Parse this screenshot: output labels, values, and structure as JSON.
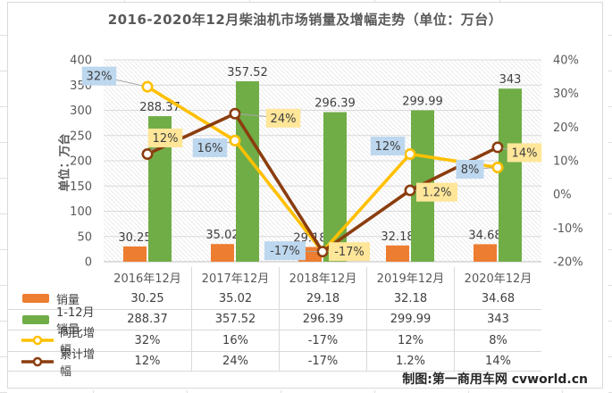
{
  "title": "2016-2020年12月柴油机市场销量及增幅走势（单位：万台）",
  "y_axis_title": "单位：万台",
  "footer_credit": "制图:第一商用车网 cvworld.cn",
  "colors": {
    "orange": "#ED7D31",
    "green": "#70AD47",
    "yellow": "#FFC000",
    "brown": "#8B3D0E",
    "label_blue": "#BDD7EE",
    "label_yellow": "#FFE699",
    "gridline": "#D9D9D9",
    "axis_line": "#BFBFBF",
    "hatch_line": "#EBEBEB",
    "connector": "#A6A6A6",
    "text_gray": "#595959",
    "text_dark": "#404040"
  },
  "chart_data": {
    "type": "combo bar+line",
    "title": "2016-2020年12月柴油机市场销量及增幅走势（单位：万台）",
    "categories": [
      "2016年12月",
      "2017年12月",
      "2018年12月",
      "2019年12月",
      "2020年12月"
    ],
    "left_axis": {
      "title": "单位：万台",
      "min": 0,
      "max": 400,
      "step": 50,
      "tick_labels": [
        "0",
        "50",
        "100",
        "150",
        "200",
        "250",
        "300",
        "350",
        "400"
      ]
    },
    "right_axis": {
      "min": -20,
      "max": 40,
      "step": 10,
      "tick_labels": [
        "-20%",
        "-10%",
        "0%",
        "10%",
        "20%",
        "30%",
        "40%"
      ]
    },
    "grid": "horizontal major gridlines, hatched plot background",
    "legend_position": "data-table below plot",
    "series": [
      {
        "name": "销量",
        "type": "bar",
        "axis": "left",
        "color": "#ED7D31",
        "values": [
          30.25,
          35.02,
          29.18,
          32.18,
          34.68
        ],
        "labels": [
          "30.25",
          "35.02",
          "29.18",
          "32.18",
          "34.68"
        ]
      },
      {
        "name": "1-12月销量",
        "type": "bar",
        "axis": "left",
        "color": "#70AD47",
        "values": [
          288.37,
          357.52,
          296.39,
          299.99,
          343
        ],
        "labels": [
          "288.37",
          "357.52",
          "296.39",
          "299.99",
          "343"
        ]
      },
      {
        "name": "同比增幅",
        "type": "line",
        "axis": "right",
        "color": "#FFC000",
        "label_bg": "#BDD7EE",
        "values": [
          32,
          16,
          -17,
          12,
          8
        ],
        "labels": [
          "32%",
          "16%",
          "-17%",
          "12%",
          "8%"
        ],
        "label_offsets": [
          [
            -54,
            -12
          ],
          [
            -28,
            8
          ],
          [
            -42,
            -1
          ],
          [
            -25,
            -9
          ],
          [
            -31,
            2
          ]
        ]
      },
      {
        "name": "累计增幅",
        "type": "line",
        "axis": "right",
        "color": "#8B3D0E",
        "label_bg": "#FFE699",
        "values": [
          12,
          24,
          -17,
          1.2,
          14
        ],
        "labels": [
          "12%",
          "24%",
          "-17%",
          "1.2%",
          "14%"
        ],
        "label_offsets": [
          [
            20,
            -18
          ],
          [
            54,
            5
          ],
          [
            30,
            0
          ],
          [
            30,
            2
          ],
          [
            30,
            6
          ]
        ]
      }
    ]
  }
}
